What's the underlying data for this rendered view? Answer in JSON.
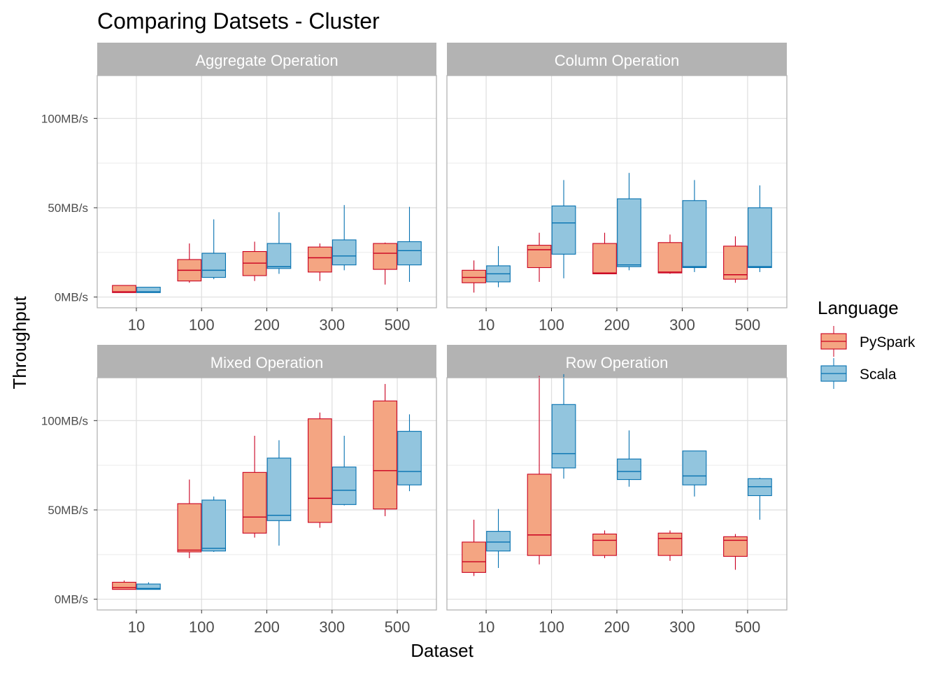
{
  "chart_data": {
    "type": "boxplot",
    "title": "Comparing Datsets - Cluster",
    "xlabel": "Dataset",
    "ylabel": "Throughput",
    "categories": [
      "10",
      "100",
      "200",
      "300",
      "500"
    ],
    "y_ticks": [
      {
        "value": 0,
        "label": "0MB/s"
      },
      {
        "value": 50,
        "label": "50MB/s"
      },
      {
        "value": 100,
        "label": "100MB/s"
      }
    ],
    "ylim": [
      -6,
      124
    ],
    "grid": true,
    "legend": {
      "title": "Language",
      "position": "right",
      "entries": [
        {
          "name": "PySpark",
          "fill": "#f4a582",
          "stroke": "#ca0020"
        },
        {
          "name": "Scala",
          "fill": "#92c5de",
          "stroke": "#0571b0"
        }
      ]
    },
    "panels": [
      {
        "name": "Aggregate Operation",
        "series": [
          {
            "name": "PySpark",
            "boxes": [
              {
                "min": 2.5,
                "q1": 2.5,
                "median": 3,
                "q3": 6.5,
                "max": 6.5
              },
              {
                "min": 8,
                "q1": 9,
                "median": 15,
                "q3": 21,
                "max": 30
              },
              {
                "min": 9,
                "q1": 12,
                "median": 19,
                "q3": 25.5,
                "max": 31
              },
              {
                "min": 9,
                "q1": 14,
                "median": 22,
                "q3": 28,
                "max": 30
              },
              {
                "min": 7,
                "q1": 15.5,
                "median": 24.5,
                "q3": 30,
                "max": 30.5
              }
            ]
          },
          {
            "name": "Scala",
            "boxes": [
              {
                "min": 2.5,
                "q1": 2.5,
                "median": 3,
                "q3": 5.5,
                "max": 5.5
              },
              {
                "min": 10,
                "q1": 11,
                "median": 15,
                "q3": 24.5,
                "max": 43.5
              },
              {
                "min": 13,
                "q1": 16,
                "median": 17,
                "q3": 30,
                "max": 47.5
              },
              {
                "min": 15,
                "q1": 18,
                "median": 23,
                "q3": 32,
                "max": 51.5
              },
              {
                "min": 8.5,
                "q1": 18,
                "median": 26,
                "q3": 31,
                "max": 50.5
              }
            ]
          }
        ]
      },
      {
        "name": "Column Operation",
        "series": [
          {
            "name": "PySpark",
            "boxes": [
              {
                "min": 2.5,
                "q1": 8,
                "median": 11,
                "q3": 15,
                "max": 20.5
              },
              {
                "min": 8.5,
                "q1": 16.5,
                "median": 26.5,
                "q3": 29,
                "max": 36
              },
              {
                "min": 13,
                "q1": 13,
                "median": 13.5,
                "q3": 30,
                "max": 36
              },
              {
                "min": 13,
                "q1": 13.5,
                "median": 14,
                "q3": 30.5,
                "max": 35
              },
              {
                "min": 8,
                "q1": 10,
                "median": 12.5,
                "q3": 28.5,
                "max": 34
              }
            ]
          },
          {
            "name": "Scala",
            "boxes": [
              {
                "min": 5.5,
                "q1": 8.5,
                "median": 13,
                "q3": 17.5,
                "max": 28.5
              },
              {
                "min": 10.5,
                "q1": 24,
                "median": 41.5,
                "q3": 51,
                "max": 65.5
              },
              {
                "min": 15,
                "q1": 17,
                "median": 18,
                "q3": 55,
                "max": 69.5
              },
              {
                "min": 14,
                "q1": 16.5,
                "median": 17,
                "q3": 54,
                "max": 65.5
              },
              {
                "min": 14,
                "q1": 16.5,
                "median": 17,
                "q3": 50,
                "max": 62.5
              }
            ]
          }
        ]
      },
      {
        "name": "Mixed Operation",
        "series": [
          {
            "name": "PySpark",
            "boxes": [
              {
                "min": 5.5,
                "q1": 5.5,
                "median": 6.5,
                "q3": 9.5,
                "max": 10.5
              },
              {
                "min": 23,
                "q1": 26.5,
                "median": 27.5,
                "q3": 53.5,
                "max": 67
              },
              {
                "min": 34.5,
                "q1": 37,
                "median": 46,
                "q3": 71,
                "max": 91.5
              },
              {
                "min": 40,
                "q1": 43,
                "median": 56.5,
                "q3": 101,
                "max": 104.5
              },
              {
                "min": 46.5,
                "q1": 50.5,
                "median": 72,
                "q3": 111,
                "max": 120.5
              }
            ]
          },
          {
            "name": "Scala",
            "boxes": [
              {
                "min": 5.5,
                "q1": 5.5,
                "median": 6,
                "q3": 8.5,
                "max": 9.5
              },
              {
                "min": 26.5,
                "q1": 27,
                "median": 28.5,
                "q3": 55.5,
                "max": 57.5
              },
              {
                "min": 30,
                "q1": 44,
                "median": 47,
                "q3": 79,
                "max": 89
              },
              {
                "min": 52.5,
                "q1": 53,
                "median": 61,
                "q3": 74,
                "max": 91.5
              },
              {
                "min": 60.5,
                "q1": 64,
                "median": 71.5,
                "q3": 94,
                "max": 103.5
              }
            ]
          }
        ]
      },
      {
        "name": "Row Operation",
        "series": [
          {
            "name": "PySpark",
            "boxes": [
              {
                "min": 13,
                "q1": 15,
                "median": 21,
                "q3": 32,
                "max": 44.5
              },
              {
                "min": 19.5,
                "q1": 24.5,
                "median": 36,
                "q3": 70,
                "max": 125
              },
              {
                "min": 23,
                "q1": 24.5,
                "median": 33,
                "q3": 36.5,
                "max": 38.5
              },
              {
                "min": 21.5,
                "q1": 24.5,
                "median": 34,
                "q3": 37,
                "max": 38.5
              },
              {
                "min": 16.5,
                "q1": 24,
                "median": 33,
                "q3": 35,
                "max": 36.5
              }
            ]
          },
          {
            "name": "Scala",
            "boxes": [
              {
                "min": 17.5,
                "q1": 27,
                "median": 32,
                "q3": 38,
                "max": 50.5
              },
              {
                "min": 67.5,
                "q1": 73.5,
                "median": 81.5,
                "q3": 109,
                "max": 126
              },
              {
                "min": 63,
                "q1": 67,
                "median": 71.5,
                "q3": 78.5,
                "max": 94.5
              },
              {
                "min": 57.5,
                "q1": 64,
                "median": 69,
                "q3": 83,
                "max": 83
              },
              {
                "min": 44.5,
                "q1": 58,
                "median": 63,
                "q3": 67.5,
                "max": 68
              }
            ]
          }
        ]
      }
    ]
  }
}
